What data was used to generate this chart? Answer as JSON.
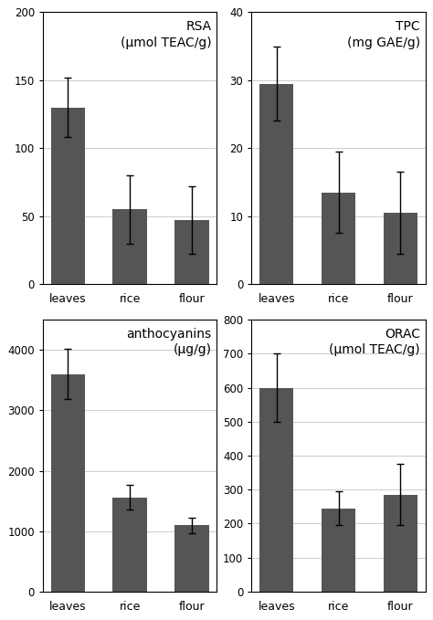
{
  "panels": [
    {
      "title": "RSA",
      "subtitle": "(μmol TEAC/g)",
      "categories": [
        "leaves",
        "rice",
        "flour"
      ],
      "values": [
        130,
        55,
        47
      ],
      "errors": [
        22,
        25,
        25
      ],
      "ylim": [
        0,
        200
      ],
      "yticks": [
        0,
        50,
        100,
        150,
        200
      ]
    },
    {
      "title": "TPC",
      "subtitle": "(mg GAE/g)",
      "categories": [
        "leaves",
        "rice",
        "flour"
      ],
      "values": [
        29.5,
        13.5,
        10.5
      ],
      "errors": [
        5.5,
        6,
        6
      ],
      "ylim": [
        0,
        40
      ],
      "yticks": [
        0,
        10,
        20,
        30,
        40
      ]
    },
    {
      "title": "anthocyanins",
      "subtitle": "(μg/g)",
      "categories": [
        "leaves",
        "rice",
        "flour"
      ],
      "values": [
        3600,
        1560,
        1100
      ],
      "errors": [
        420,
        200,
        130
      ],
      "ylim": [
        0,
        4500
      ],
      "yticks": [
        0,
        1000,
        2000,
        3000,
        4000
      ]
    },
    {
      "title": "ORAC",
      "subtitle": "(μmol TEAC/g)",
      "categories": [
        "leaves",
        "rice",
        "flour"
      ],
      "values": [
        600,
        245,
        285
      ],
      "errors": [
        100,
        50,
        90
      ],
      "ylim": [
        0,
        800
      ],
      "yticks": [
        0,
        100,
        200,
        300,
        400,
        500,
        600,
        700,
        800
      ]
    }
  ],
  "bar_color": "#555555",
  "bar_width": 0.55,
  "background_color": "#ffffff",
  "grid_color": "#cccccc",
  "fig_width": 4.74,
  "fig_height": 6.79,
  "dpi": 100
}
